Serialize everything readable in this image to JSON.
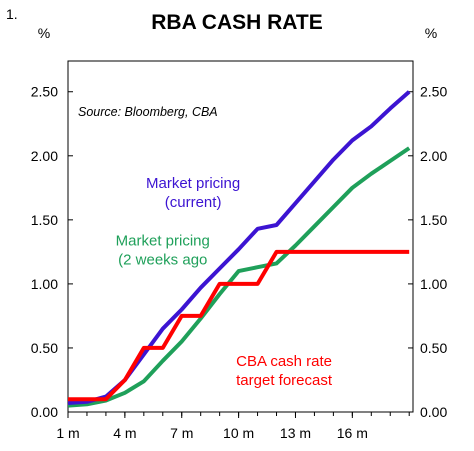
{
  "figure_number": "1.",
  "chart_data": {
    "type": "line",
    "title": "RBA CASH RATE",
    "source": "Source: Bloomberg, CBA",
    "ylabel_left": "%",
    "ylabel_right": "%",
    "xlim": [
      1,
      19.2
    ],
    "ylim": [
      0,
      2.5
    ],
    "x_ticks": [
      1,
      4,
      7,
      10,
      13,
      16
    ],
    "x_tick_labels": [
      "1 m",
      "4 m",
      "7 m",
      "10 m",
      "13 m",
      "16 m"
    ],
    "y_ticks": [
      0,
      0.5,
      1,
      1.5,
      2,
      2.5
    ],
    "y_tick_labels": [
      "0.00",
      "0.50",
      "1.00",
      "1.50",
      "2.00",
      "2.50"
    ],
    "grid": false,
    "series": [
      {
        "name": "Market pricing (current)",
        "color": "#3c14d2",
        "points": [
          [
            1,
            0.07
          ],
          [
            2,
            0.08
          ],
          [
            3,
            0.12
          ],
          [
            4,
            0.25
          ],
          [
            5,
            0.45
          ],
          [
            6,
            0.65
          ],
          [
            7,
            0.8
          ],
          [
            8,
            0.97
          ],
          [
            9,
            1.12
          ],
          [
            10,
            1.27
          ],
          [
            11,
            1.43
          ],
          [
            12,
            1.46
          ],
          [
            13,
            1.63
          ],
          [
            14,
            1.8
          ],
          [
            15,
            1.97
          ],
          [
            16,
            2.12
          ],
          [
            17,
            2.23
          ],
          [
            18,
            2.37
          ],
          [
            19,
            2.5
          ]
        ]
      },
      {
        "name": "Market pricing (2 weeks ago)",
        "color": "#1fa05a",
        "points": [
          [
            1,
            0.05
          ],
          [
            2,
            0.06
          ],
          [
            3,
            0.09
          ],
          [
            4,
            0.15
          ],
          [
            5,
            0.24
          ],
          [
            6,
            0.4
          ],
          [
            7,
            0.55
          ],
          [
            8,
            0.73
          ],
          [
            9,
            0.92
          ],
          [
            10,
            1.1
          ],
          [
            11,
            1.13
          ],
          [
            12,
            1.16
          ],
          [
            13,
            1.3
          ],
          [
            14,
            1.45
          ],
          [
            15,
            1.6
          ],
          [
            16,
            1.75
          ],
          [
            17,
            1.86
          ],
          [
            18,
            1.96
          ],
          [
            19,
            2.06
          ]
        ]
      },
      {
        "name": "CBA cash rate target forecast",
        "color": "#ff0000",
        "points": [
          [
            1,
            0.1
          ],
          [
            3,
            0.1
          ],
          [
            4,
            0.25
          ],
          [
            5,
            0.5
          ],
          [
            6,
            0.5
          ],
          [
            7,
            0.75
          ],
          [
            8,
            0.75
          ],
          [
            9,
            1.0
          ],
          [
            11,
            1.0
          ],
          [
            12,
            1.25
          ],
          [
            19,
            1.25
          ]
        ]
      }
    ],
    "annotations": [
      {
        "lines": [
          "Market pricing",
          "(current)"
        ],
        "color": "#3c14d2",
        "x": 7.6,
        "y": 1.75
      },
      {
        "lines": [
          "Market pricing",
          "(2 weeks ago"
        ],
        "color": "#1fa05a",
        "x": 6.0,
        "y": 1.3
      },
      {
        "lines": [
          "CBA cash rate",
          "target forecast"
        ],
        "color": "#ff0000",
        "x": 12.4,
        "y": 0.36
      }
    ]
  }
}
